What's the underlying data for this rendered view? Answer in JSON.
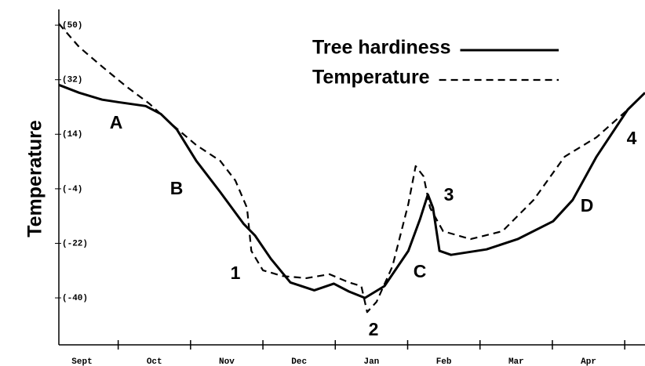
{
  "chart_data": {
    "type": "line",
    "y_label": "Temperature",
    "categories": [
      "Sept",
      "Oct",
      "Nov",
      "Dec",
      "Jan",
      "Feb",
      "Mar",
      "Apr"
    ],
    "xlim": [
      0.18,
      8.28
    ],
    "xticks": [
      1,
      2,
      3,
      4,
      5,
      6,
      7,
      8
    ],
    "ylim": [
      -55.5,
      55.2
    ],
    "yticks": [
      {
        "value": 50,
        "label": "(50)"
      },
      {
        "value": 32,
        "label": "(32)"
      },
      {
        "value": 14,
        "label": "(14)"
      },
      {
        "value": -4,
        "label": "(-4)"
      },
      {
        "value": -22,
        "label": "(-22)"
      },
      {
        "value": -40,
        "label": "(-40)"
      }
    ],
    "series": [
      {
        "name": "Tree hardiness",
        "color": "#000000",
        "style": "solid",
        "x": [
          0.18,
          0.46,
          0.78,
          1.0,
          1.38,
          1.59,
          1.81,
          2.08,
          2.41,
          2.73,
          2.89,
          3.11,
          3.38,
          3.71,
          3.98,
          4.19,
          4.41,
          4.68,
          5.01,
          5.17,
          5.28,
          5.35,
          5.44,
          5.6,
          6.09,
          6.52,
          7.01,
          7.28,
          7.61,
          8.04,
          8.28
        ],
        "values": [
          30.3,
          27.7,
          25.4,
          24.6,
          23.3,
          20.7,
          15.6,
          5.2,
          -5.1,
          -15.5,
          -19.4,
          -27.1,
          -34.9,
          -37.5,
          -35.3,
          -37.9,
          -40.0,
          -36.1,
          -24.5,
          -14.1,
          -5.9,
          -10.3,
          -24.5,
          -25.8,
          -24.0,
          -20.6,
          -14.7,
          -7.7,
          6.6,
          22.1,
          27.7
        ]
      },
      {
        "name": "Temperature",
        "color": "#000000",
        "style": "dashed",
        "x": [
          0.18,
          0.46,
          0.78,
          1.11,
          1.43,
          1.76,
          2.08,
          2.41,
          2.62,
          2.78,
          2.84,
          3.0,
          3.27,
          3.6,
          3.92,
          4.19,
          4.36,
          4.44,
          4.57,
          4.79,
          5.01,
          5.11,
          5.22,
          5.31,
          5.49,
          5.87,
          6.31,
          6.74,
          7.17,
          7.61,
          8.04,
          8.28
        ],
        "values": [
          50.5,
          42.8,
          36.3,
          29.8,
          24.1,
          16.9,
          10.4,
          5.2,
          -1.3,
          -10.3,
          -24.5,
          -30.9,
          -32.8,
          -33.5,
          -32.2,
          -34.9,
          -36.1,
          -44.7,
          -41.3,
          -29.6,
          -9.0,
          3.5,
          0.1,
          -10.3,
          -18.0,
          -20.6,
          -18.0,
          -7.7,
          6.6,
          13.0,
          22.1,
          27.7
        ]
      }
    ],
    "annotations": [
      "A",
      "B",
      "1",
      "2",
      "C",
      "3",
      "D",
      "4"
    ]
  }
}
